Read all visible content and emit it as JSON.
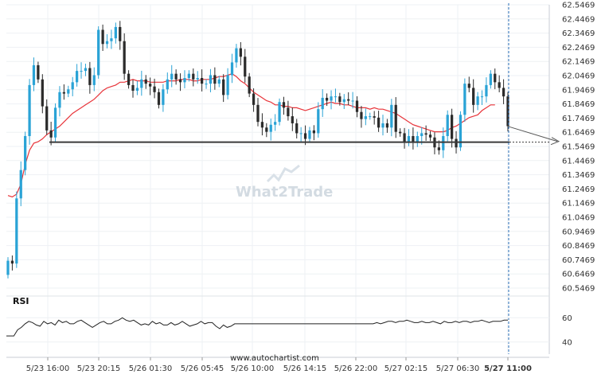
{
  "chart_data": {
    "type": "candlestick",
    "price_axis": {
      "ticks": [
        "62.5469",
        "62.4469",
        "62.3469",
        "62.2469",
        "62.1469",
        "62.0469",
        "61.9469",
        "61.8469",
        "61.7469",
        "61.6469",
        "61.5469",
        "61.4469",
        "61.3469",
        "61.2469",
        "61.1469",
        "61.0469",
        "60.9469",
        "60.8469",
        "60.7469",
        "60.6469",
        "60.5469"
      ],
      "range": [
        60.5469,
        62.5469
      ]
    },
    "time_axis": {
      "ticks": [
        "5/23 16:00",
        "5/23 20:15",
        "5/26 01:30",
        "5/26 05:45",
        "5/26 10:00",
        "5/26 14:15",
        "5/26 22:00",
        "5/27 02:15",
        "5/27 06:30",
        "5/27 11:00"
      ]
    },
    "support_level": 61.5769,
    "last_close": 61.6869,
    "price_path": [
      60.74,
      60.72,
      61.18,
      61.38,
      61.62,
      61.98,
      62.12,
      62.02,
      61.83,
      61.66,
      61.61,
      61.82,
      61.93,
      61.92,
      61.95,
      62.0,
      62.08,
      62.08,
      62.1,
      61.98,
      62.05,
      62.37,
      62.27,
      62.29,
      62.31,
      62.39,
      62.29,
      62.06,
      61.98,
      61.94,
      61.96,
      62.02,
      61.99,
      61.97,
      61.93,
      61.84,
      61.95,
      62.02,
      62.06,
      62.02,
      62.0,
      62.03,
      62.06,
      62.02,
      62.03,
      61.99,
      61.99,
      62.05,
      61.99,
      62.02,
      61.91,
      62.05,
      62.14,
      62.24,
      62.18,
      62.04,
      61.92,
      61.84,
      61.72,
      61.68,
      61.65,
      61.7,
      61.72,
      61.86,
      61.82,
      61.76,
      61.71,
      61.64,
      61.64,
      61.6,
      61.66,
      61.64,
      61.81,
      61.89,
      61.87,
      61.9,
      61.9,
      61.86,
      61.88,
      61.87,
      61.87,
      61.79,
      61.74,
      61.76,
      61.76,
      61.75,
      61.68,
      61.71,
      61.68,
      61.84,
      61.65,
      61.64,
      61.58,
      61.62,
      61.58,
      61.62,
      61.64,
      61.63,
      61.61,
      61.54,
      61.52,
      61.62,
      61.77,
      61.6,
      61.54,
      61.77,
      61.99,
      61.96,
      61.84,
      61.9,
      61.9,
      61.98,
      62.06,
      62.0,
      61.96,
      61.9,
      61.69
    ],
    "ma_line": [
      61.2,
      61.19,
      61.21,
      61.28,
      61.42,
      61.52,
      61.57,
      61.58,
      61.6,
      61.63,
      61.65,
      61.67,
      61.69,
      61.72,
      61.75,
      61.78,
      61.8,
      61.82,
      61.84,
      61.86,
      61.88,
      61.91,
      61.94,
      61.96,
      61.97,
      61.98,
      62.0,
      62.0,
      62.01,
      62.02,
      62.01,
      62.01,
      62.01,
      62.0,
      62.0,
      62.0,
      62.0,
      62.01,
      62.01,
      62.01,
      62.02,
      62.02,
      62.02,
      62.01,
      62.01,
      62.02,
      62.02,
      62.02,
      62.03,
      62.04,
      62.04,
      62.05,
      62.06,
      62.04,
      62.01,
      61.99,
      61.96,
      61.93,
      61.91,
      61.89,
      61.87,
      61.86,
      61.84,
      61.84,
      61.83,
      61.83,
      61.82,
      61.82,
      61.81,
      61.8,
      61.81,
      61.82,
      61.83,
      61.84,
      61.85,
      61.86,
      61.85,
      61.85,
      61.84,
      61.84,
      61.83,
      61.82,
      61.82,
      61.82,
      61.81,
      61.82,
      61.81,
      61.81,
      61.8,
      61.79,
      61.78,
      61.76,
      61.74,
      61.72,
      61.7,
      61.69,
      61.68,
      61.67,
      61.66,
      61.65,
      61.65,
      61.65,
      61.66,
      61.68,
      61.69,
      61.71,
      61.73,
      61.75,
      61.76,
      61.77,
      61.8,
      61.82,
      61.84,
      61.84
    ],
    "rsi": {
      "label": "RSI",
      "ticks": [
        "60",
        "40"
      ],
      "range": [
        30,
        70
      ],
      "values": [
        45,
        45,
        45,
        50,
        52,
        55,
        57,
        56,
        54,
        53,
        57,
        55,
        56,
        54,
        58,
        56,
        57,
        55,
        55,
        57,
        58,
        56,
        54,
        52,
        54,
        56,
        57,
        55,
        55,
        57,
        58,
        60,
        58,
        57,
        58,
        56,
        54,
        55,
        54,
        57,
        55,
        56,
        54,
        54,
        56,
        54,
        55,
        57,
        55,
        53,
        54,
        55,
        57,
        55,
        56,
        56,
        53,
        51,
        54,
        52,
        53,
        55,
        55,
        55,
        55,
        55,
        55,
        55,
        55,
        55,
        55,
        55,
        55,
        55,
        55,
        55,
        55,
        55,
        55,
        55,
        55,
        55,
        55,
        55,
        55,
        55,
        55,
        55,
        55,
        55,
        55,
        55,
        55,
        55,
        55,
        55,
        55,
        55,
        55,
        56,
        55,
        56,
        57,
        57,
        56,
        57,
        57,
        58,
        57,
        56,
        56,
        57,
        56,
        56,
        57,
        56,
        55,
        57,
        56,
        56,
        57,
        56,
        57,
        57,
        56,
        57,
        57,
        58,
        57,
        56,
        57,
        57,
        57,
        58,
        58
      ]
    },
    "watermark": "What2Trade",
    "source": "www.autochartist.com"
  }
}
